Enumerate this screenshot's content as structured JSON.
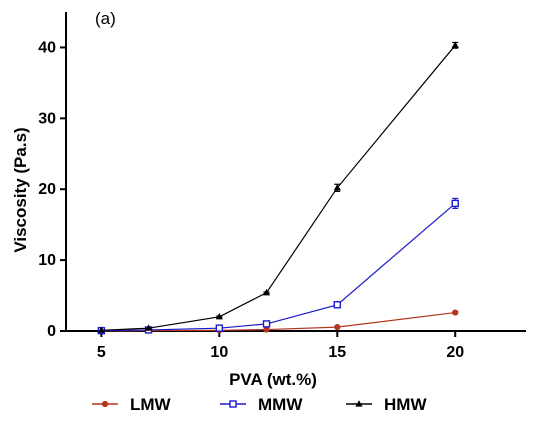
{
  "chart_data": {
    "type": "line",
    "panel_label": "(a)",
    "title": "",
    "xlabel": "PVA (wt.%)",
    "ylabel": "Viscosity (Pa.s)",
    "xlim": [
      3.5,
      23
    ],
    "ylim": [
      0,
      45
    ],
    "xticks": [
      5,
      10,
      15,
      20
    ],
    "yticks": [
      0,
      10,
      20,
      30,
      40
    ],
    "grid": false,
    "legend_position": "bottom",
    "series": [
      {
        "name": "LMW",
        "color": "#b5341f",
        "marker": "circle",
        "x": [
          5,
          7,
          10,
          12,
          15,
          20
        ],
        "y": [
          0.02,
          0.05,
          0.1,
          0.2,
          0.55,
          2.6
        ],
        "err": [
          0,
          0,
          0,
          0,
          0,
          0.15
        ]
      },
      {
        "name": "MMW",
        "color": "#1a1acc",
        "marker": "square",
        "x": [
          5,
          7,
          10,
          12,
          15,
          20
        ],
        "y": [
          0.05,
          0.15,
          0.4,
          1.0,
          3.7,
          18.0
        ],
        "err": [
          0,
          0,
          0,
          0,
          0.2,
          0.7
        ]
      },
      {
        "name": "HMW",
        "color": "#000000",
        "marker": "triangle",
        "x": [
          5,
          7,
          10,
          12,
          15,
          20
        ],
        "y": [
          0.1,
          0.4,
          2.0,
          5.4,
          20.2,
          40.3
        ],
        "err": [
          0,
          0,
          0.1,
          0.1,
          0.5,
          0.4
        ]
      }
    ]
  }
}
